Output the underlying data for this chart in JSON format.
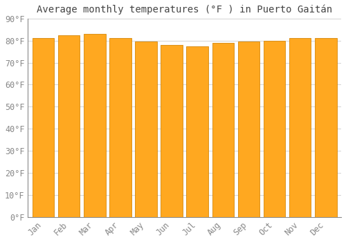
{
  "title": "Average monthly temperatures (°F ) in Puerto Gaitán",
  "months": [
    "Jan",
    "Feb",
    "Mar",
    "Apr",
    "May",
    "Jun",
    "Jul",
    "Aug",
    "Sep",
    "Oct",
    "Nov",
    "Dec"
  ],
  "values": [
    81,
    82.5,
    83,
    81,
    79.5,
    78,
    77.5,
    79,
    79.5,
    80,
    81,
    81
  ],
  "bar_color": "#FFA820",
  "bar_edge_color": "#D4870A",
  "background_color": "#FFFFFF",
  "grid_color": "#CCCCCC",
  "ylim": [
    0,
    90
  ],
  "yticks": [
    0,
    10,
    20,
    30,
    40,
    50,
    60,
    70,
    80,
    90
  ],
  "ytick_labels": [
    "0°F",
    "10°F",
    "20°F",
    "30°F",
    "40°F",
    "50°F",
    "60°F",
    "70°F",
    "80°F",
    "90°F"
  ],
  "title_fontsize": 10,
  "tick_fontsize": 8.5,
  "font_color": "#888888"
}
